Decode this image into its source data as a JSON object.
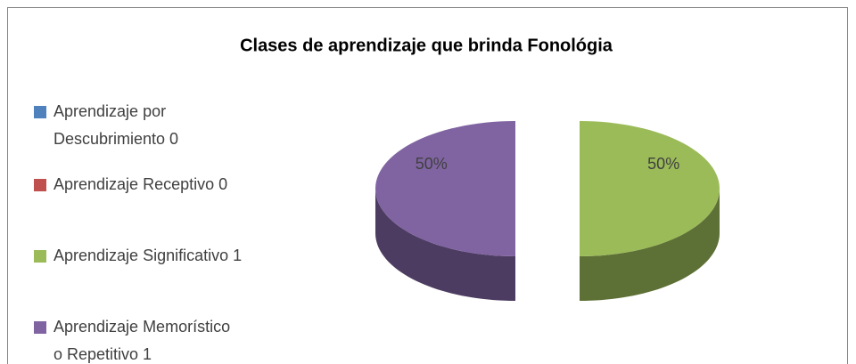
{
  "chart_data": {
    "type": "pie3d",
    "title": "Clases de aprendizaje que brinda  Fonológia",
    "categories": [
      [
        "Aprendizaje por",
        "Descubrimiento 0"
      ],
      [
        "Aprendizaje Receptivo 0"
      ],
      [
        "Aprendizaje Significativo 1"
      ],
      [
        "Aprendizaje Memorístico",
        "o Repetitivo 1"
      ]
    ],
    "values": [
      0,
      0,
      50,
      50
    ],
    "value_labels": [
      null,
      null,
      "50%",
      "50%"
    ],
    "colors": [
      "#4f81bd",
      "#c0504d",
      "#9bbb59",
      "#8064a2"
    ],
    "legend": "left"
  }
}
